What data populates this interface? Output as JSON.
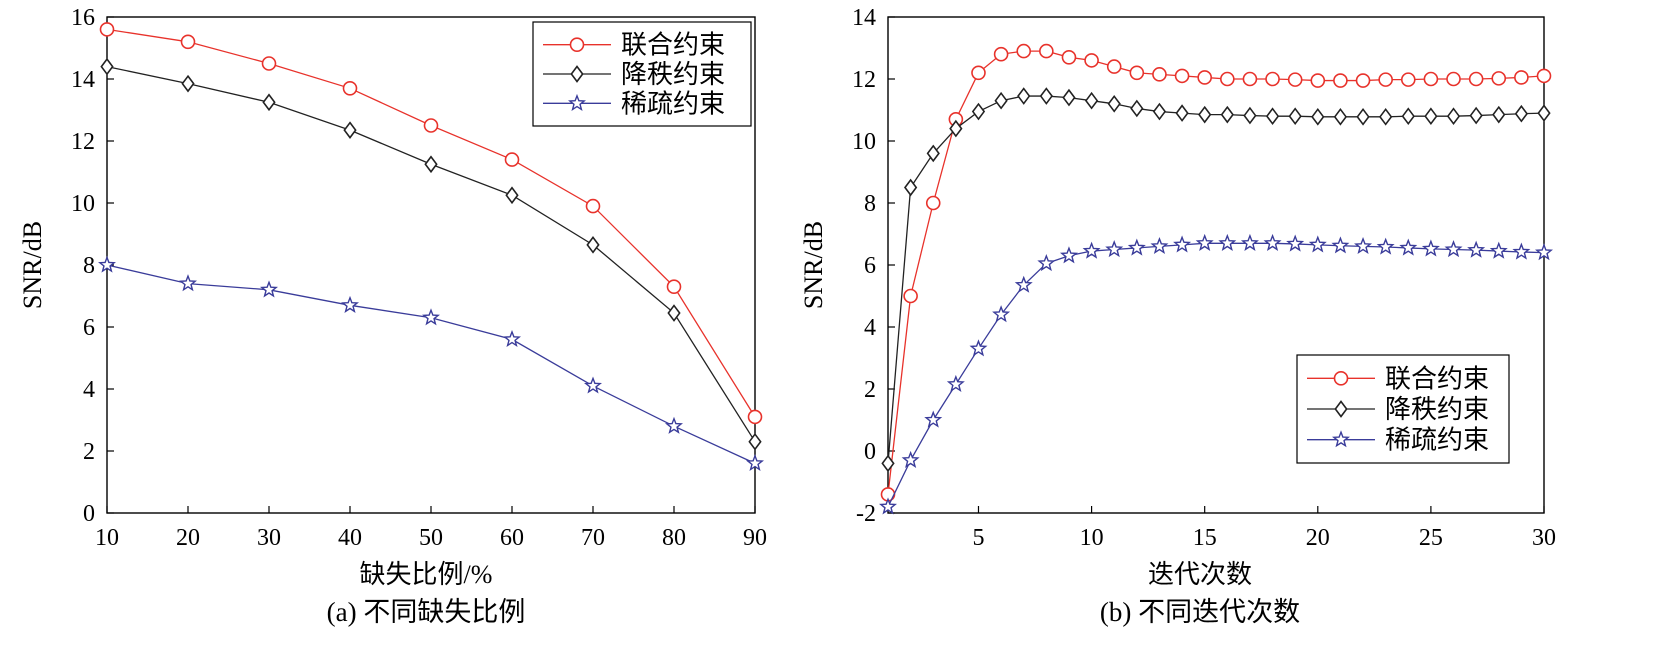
{
  "chart_data": [
    {
      "type": "line",
      "caption": "(a) 不同缺失比例",
      "xlabel": "缺失比例/%",
      "ylabel": "SNR/dB",
      "xlim": [
        10,
        90
      ],
      "ylim": [
        0,
        16
      ],
      "xticks": [
        10,
        20,
        30,
        40,
        50,
        60,
        70,
        80,
        90
      ],
      "yticks": [
        0,
        2,
        4,
        6,
        8,
        10,
        12,
        14,
        16
      ],
      "grid": false,
      "legend_position": "top-right",
      "x": [
        10,
        20,
        30,
        40,
        50,
        60,
        70,
        80,
        90
      ],
      "series": [
        {
          "name": "联合约束",
          "color": "#e8322b",
          "marker": "circle",
          "values": [
            15.6,
            15.2,
            14.5,
            13.7,
            12.5,
            11.4,
            9.9,
            7.3,
            3.1
          ]
        },
        {
          "name": "降秩约束",
          "color": "#222222",
          "marker": "diamond",
          "values": [
            14.4,
            13.85,
            13.25,
            12.35,
            11.25,
            10.25,
            8.65,
            6.45,
            2.3
          ]
        },
        {
          "name": "稀疏约束",
          "color": "#3a3c9a",
          "marker": "star",
          "values": [
            8.0,
            7.4,
            7.2,
            6.7,
            6.3,
            5.6,
            4.1,
            2.8,
            1.6
          ]
        }
      ]
    },
    {
      "type": "line",
      "caption": "(b) 不同迭代次数",
      "xlabel": "迭代次数",
      "ylabel": "SNR/dB",
      "xlim": [
        1,
        30
      ],
      "ylim": [
        -2,
        14
      ],
      "xticks": [
        5,
        10,
        15,
        20,
        25,
        30
      ],
      "yticks": [
        -2,
        0,
        2,
        4,
        6,
        8,
        10,
        12,
        14
      ],
      "grid": false,
      "legend_position": "bottom-right",
      "x": [
        1,
        2,
        3,
        4,
        5,
        6,
        7,
        8,
        9,
        10,
        11,
        12,
        13,
        14,
        15,
        16,
        17,
        18,
        19,
        20,
        21,
        22,
        23,
        24,
        25,
        26,
        27,
        28,
        29,
        30
      ],
      "series": [
        {
          "name": "联合约束",
          "color": "#e8322b",
          "marker": "circle",
          "values": [
            -1.4,
            5.0,
            8.0,
            10.7,
            12.2,
            12.8,
            12.9,
            12.9,
            12.7,
            12.6,
            12.4,
            12.2,
            12.15,
            12.1,
            12.05,
            12.0,
            12.0,
            12.0,
            11.98,
            11.95,
            11.95,
            11.95,
            11.98,
            11.98,
            12.0,
            12.0,
            12.0,
            12.02,
            12.05,
            12.1
          ]
        },
        {
          "name": "降秩约束",
          "color": "#222222",
          "marker": "diamond",
          "values": [
            -0.4,
            8.5,
            9.6,
            10.4,
            10.95,
            11.3,
            11.45,
            11.45,
            11.4,
            11.3,
            11.2,
            11.05,
            10.95,
            10.9,
            10.85,
            10.85,
            10.82,
            10.8,
            10.8,
            10.78,
            10.78,
            10.78,
            10.78,
            10.8,
            10.8,
            10.8,
            10.82,
            10.85,
            10.88,
            10.9
          ]
        },
        {
          "name": "稀疏约束",
          "color": "#3a3c9a",
          "marker": "star",
          "values": [
            -1.8,
            -0.3,
            1.0,
            2.15,
            3.3,
            4.4,
            5.35,
            6.05,
            6.3,
            6.45,
            6.5,
            6.55,
            6.6,
            6.65,
            6.7,
            6.7,
            6.7,
            6.7,
            6.68,
            6.65,
            6.62,
            6.6,
            6.58,
            6.55,
            6.52,
            6.5,
            6.48,
            6.45,
            6.42,
            6.4
          ]
        }
      ]
    }
  ]
}
